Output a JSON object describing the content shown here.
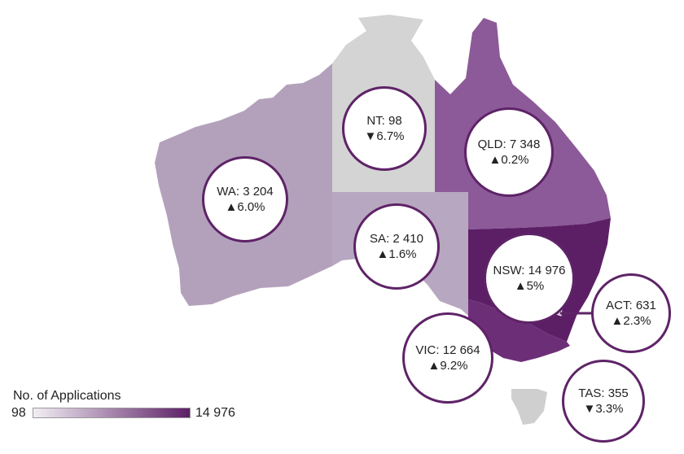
{
  "legend": {
    "title": "No. of Applications",
    "min": "98",
    "max": "14 976"
  },
  "colors": {
    "scale_low": "#f2eef4",
    "scale_high": "#5c1f66",
    "circle_border": "#5e2367",
    "no_data_gray": "#cdcdcd"
  },
  "regions": [
    {
      "id": "wa",
      "name": "WA",
      "value": "3 204",
      "change": "▲6.0%",
      "fill": "#b3a1bc"
    },
    {
      "id": "nt",
      "name": "NT",
      "value": "98",
      "change": "▼6.7%",
      "fill": "#d4d4d4"
    },
    {
      "id": "sa",
      "name": "SA",
      "value": "2 410",
      "change": "▲1.6%",
      "fill": "#b8a7c0"
    },
    {
      "id": "qld",
      "name": "QLD",
      "value": "7 348",
      "change": "▲0.2%",
      "fill": "#8c5a98"
    },
    {
      "id": "nsw",
      "name": "NSW",
      "value": "14 976",
      "change": "▲5%",
      "fill": "#5c1f66"
    },
    {
      "id": "act",
      "name": "ACT",
      "value": "631",
      "change": "▲2.3%",
      "fill": "#c9bccf"
    },
    {
      "id": "vic",
      "name": "VIC",
      "value": "12 664",
      "change": "▲9.2%",
      "fill": "#6d2e78"
    },
    {
      "id": "tas",
      "name": "TAS",
      "value": "355",
      "change": "▼3.3%",
      "fill": "#cfcfcf"
    }
  ]
}
